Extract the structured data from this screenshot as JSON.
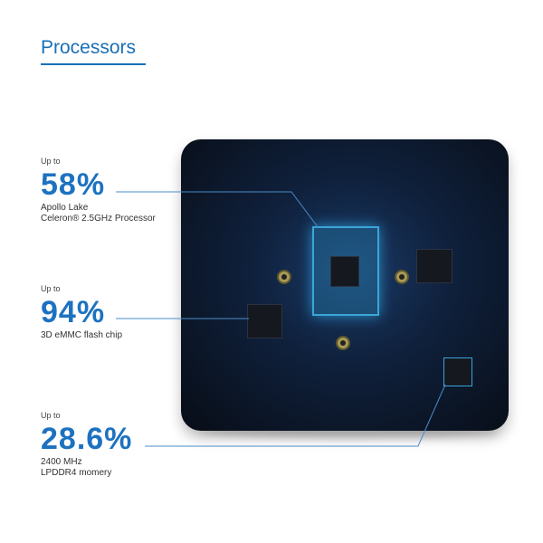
{
  "title": "Processors",
  "stats": [
    {
      "prefix": "Up to",
      "value": "58%",
      "desc1": "Apollo Lake",
      "desc2": "Celeron® 2.5GHz Processor"
    },
    {
      "prefix": "Up to",
      "value": "94%",
      "desc1": "3D eMMC flash chip",
      "desc2": ""
    },
    {
      "prefix": "Up to",
      "value": "28.6%",
      "desc1": "2400 MHz",
      "desc2": "LPDDR4 momery"
    }
  ],
  "colors": {
    "accent": "#1d72c0",
    "highlight": "#3aa5d8",
    "board": "#0f213d"
  }
}
